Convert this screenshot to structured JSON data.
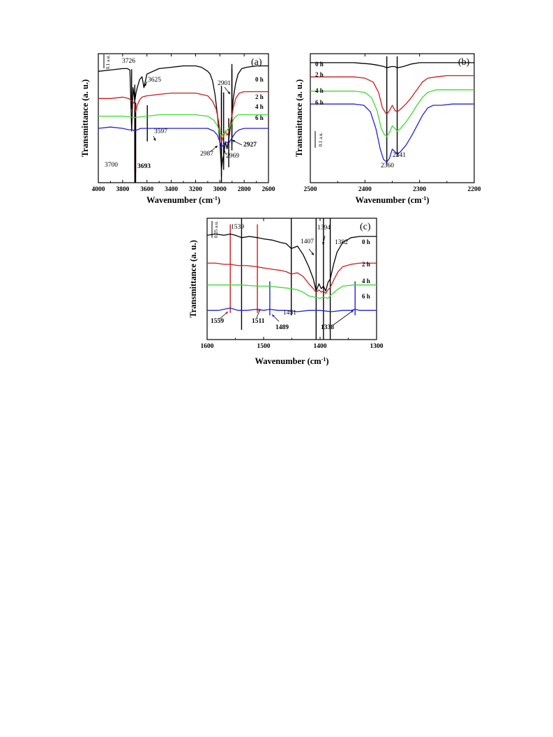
{
  "chart_data": [
    {
      "type": "line",
      "panel": "(a)",
      "xlabel": "Wavenumber (cm-1)",
      "ylabel": "Transmittance (a. u.)",
      "xlim": [
        4000,
        2600
      ],
      "x_reversed": true,
      "x_ticks": [
        "4000",
        "3800",
        "3600",
        "3400",
        "3200",
        "3000",
        "2800",
        "2600"
      ],
      "scale_bar": "0.1 a.u.",
      "series": [
        {
          "name": "0 h",
          "color": "#000000",
          "x": [
            4000,
            3900,
            3800,
            3760,
            3740,
            3726,
            3715,
            3700,
            3690,
            3680,
            3660,
            3640,
            3625,
            3600,
            3500,
            3400,
            3300,
            3200,
            3150,
            3100,
            3080,
            3060,
            3040,
            3020,
            3000,
            2987,
            2975,
            2969,
            2955,
            2940,
            2927,
            2915,
            2901,
            2890,
            2870,
            2850,
            2820,
            2780,
            2700,
            2600
          ],
          "y": [
            0.82,
            0.83,
            0.84,
            0.84,
            0.83,
            0.38,
            0.7,
            0.6,
            0.66,
            0.7,
            0.76,
            0.78,
            0.7,
            0.8,
            0.84,
            0.85,
            0.86,
            0.86,
            0.85,
            0.82,
            0.8,
            0.75,
            0.65,
            0.5,
            0.3,
            0.1,
            0.18,
            0.2,
            0.3,
            0.25,
            0.32,
            0.4,
            0.5,
            0.62,
            0.73,
            0.8,
            0.84,
            0.85,
            0.86,
            0.86
          ]
        },
        {
          "name": "2 h",
          "color": "#cc1b1b",
          "x": [
            4000,
            3900,
            3800,
            3750,
            3720,
            3700,
            3693,
            3680,
            3660,
            3640,
            3600,
            3500,
            3400,
            3300,
            3200,
            3100,
            3060,
            3030,
            3010,
            2995,
            2987,
            2970,
            2955,
            2940,
            2927,
            2910,
            2890,
            2870,
            2840,
            2800,
            2700,
            2600
          ],
          "y": [
            0.62,
            0.62,
            0.63,
            0.62,
            0.6,
            0.58,
            0.52,
            0.57,
            0.61,
            0.63,
            0.64,
            0.65,
            0.66,
            0.66,
            0.66,
            0.64,
            0.6,
            0.54,
            0.45,
            0.35,
            0.3,
            0.34,
            0.38,
            0.35,
            0.37,
            0.45,
            0.55,
            0.62,
            0.66,
            0.67,
            0.67,
            0.67
          ]
        },
        {
          "name": "4 h",
          "color": "#3cdc2c",
          "x": [
            4000,
            3900,
            3800,
            3700,
            3600,
            3500,
            3400,
            3300,
            3200,
            3100,
            3050,
            3020,
            3000,
            2987,
            2970,
            2950,
            2927,
            2900,
            2880,
            2850,
            2800,
            2700,
            2600
          ],
          "y": [
            0.49,
            0.49,
            0.49,
            0.48,
            0.49,
            0.5,
            0.5,
            0.5,
            0.5,
            0.49,
            0.46,
            0.42,
            0.37,
            0.34,
            0.36,
            0.38,
            0.4,
            0.44,
            0.48,
            0.5,
            0.5,
            0.5,
            0.5
          ]
        },
        {
          "name": "6 h",
          "color": "#2020d8",
          "x": [
            4000,
            3900,
            3800,
            3750,
            3720,
            3700,
            3680,
            3650,
            3600,
            3500,
            3400,
            3300,
            3200,
            3100,
            3050,
            3020,
            3000,
            2987,
            2970,
            2950,
            2927,
            2900,
            2870,
            2840,
            2800,
            2700,
            2600
          ],
          "y": [
            0.4,
            0.41,
            0.4,
            0.39,
            0.39,
            0.38,
            0.39,
            0.4,
            0.4,
            0.4,
            0.4,
            0.4,
            0.4,
            0.4,
            0.38,
            0.35,
            0.3,
            0.26,
            0.28,
            0.3,
            0.29,
            0.33,
            0.37,
            0.39,
            0.4,
            0.4,
            0.4
          ]
        }
      ],
      "annotations": [
        {
          "x": 3726,
          "text": "3726",
          "color": "#000000"
        },
        {
          "x": 3625,
          "text": "3625",
          "color": "#000000"
        },
        {
          "x": 3597,
          "text": "3597",
          "color": "#000000"
        },
        {
          "x": 3700,
          "text": "3700",
          "color": "#000000"
        },
        {
          "x": 3693,
          "text": "3693",
          "color": "#cc1b1b"
        },
        {
          "x": 2901,
          "text": "2901",
          "color": "#000000"
        },
        {
          "x": 2927,
          "text": "2927",
          "color": "#000000"
        },
        {
          "x": 2969,
          "text": "2969",
          "color": "#000000"
        },
        {
          "x": 2987,
          "text": "2987",
          "color": "#000000"
        }
      ]
    },
    {
      "type": "line",
      "panel": "(b)",
      "xlabel": "Wavenumber (cm-1)",
      "ylabel": "Transmittance (a. u.)",
      "xlim": [
        2500,
        2200
      ],
      "x_reversed": true,
      "x_ticks": [
        "2500",
        "2400",
        "2300",
        "2200"
      ],
      "scale_bar": "0.1 a.u.",
      "series": [
        {
          "name": "0 h",
          "color": "#000000",
          "x": [
            2500,
            2420,
            2390,
            2375,
            2365,
            2360,
            2352,
            2345,
            2341,
            2330,
            2315,
            2300,
            2270,
            2240,
            2200
          ],
          "y": [
            0.93,
            0.93,
            0.92,
            0.91,
            0.9,
            0.89,
            0.9,
            0.9,
            0.89,
            0.9,
            0.92,
            0.93,
            0.93,
            0.93,
            0.93
          ]
        },
        {
          "name": "2 h",
          "color": "#cc1b1b",
          "x": [
            2500,
            2420,
            2400,
            2385,
            2375,
            2368,
            2362,
            2360,
            2355,
            2350,
            2345,
            2341,
            2335,
            2325,
            2315,
            2305,
            2295,
            2285,
            2270,
            2250,
            2220,
            2200
          ],
          "y": [
            0.82,
            0.82,
            0.81,
            0.78,
            0.7,
            0.58,
            0.54,
            0.53,
            0.56,
            0.6,
            0.56,
            0.55,
            0.57,
            0.61,
            0.66,
            0.72,
            0.78,
            0.81,
            0.82,
            0.83,
            0.83,
            0.83
          ]
        },
        {
          "name": "4 h",
          "color": "#3cdc2c",
          "x": [
            2500,
            2420,
            2400,
            2388,
            2378,
            2370,
            2364,
            2360,
            2355,
            2350,
            2345,
            2341,
            2335,
            2325,
            2315,
            2305,
            2295,
            2285,
            2270,
            2250,
            2220,
            2200
          ],
          "y": [
            0.71,
            0.71,
            0.7,
            0.66,
            0.56,
            0.42,
            0.37,
            0.36,
            0.39,
            0.44,
            0.42,
            0.4,
            0.42,
            0.47,
            0.53,
            0.6,
            0.66,
            0.7,
            0.72,
            0.72,
            0.72,
            0.72
          ]
        },
        {
          "name": "6 h",
          "color": "#2020d8",
          "x": [
            2500,
            2420,
            2402,
            2390,
            2380,
            2372,
            2366,
            2360,
            2355,
            2350,
            2345,
            2341,
            2335,
            2325,
            2315,
            2305,
            2295,
            2285,
            2275,
            2260,
            2240,
            2220,
            2200
          ],
          "y": [
            0.61,
            0.61,
            0.6,
            0.55,
            0.42,
            0.26,
            0.18,
            0.16,
            0.19,
            0.26,
            0.24,
            0.22,
            0.24,
            0.29,
            0.36,
            0.44,
            0.52,
            0.58,
            0.6,
            0.6,
            0.61,
            0.61,
            0.61
          ]
        }
      ],
      "annotations": [
        {
          "x": 2360,
          "text": "2360",
          "color": "#000000"
        },
        {
          "x": 2341,
          "text": "2341",
          "color": "#000000"
        }
      ]
    },
    {
      "type": "line",
      "panel": "(c)",
      "xlabel": "Wavenumber (cm-1)",
      "ylabel": "Transmittance (a. u.)",
      "xlim": [
        1600,
        1300
      ],
      "x_reversed": true,
      "x_ticks": [
        "1600",
        "1500",
        "1400",
        "1300"
      ],
      "scale_bar": "0.05 a.u.",
      "series": [
        {
          "name": "0 h",
          "color": "#000000",
          "x": [
            1600,
            1585,
            1570,
            1559,
            1550,
            1539,
            1525,
            1511,
            1500,
            1485,
            1470,
            1460,
            1451,
            1440,
            1430,
            1420,
            1412,
            1407,
            1402,
            1398,
            1394,
            1390,
            1386,
            1382,
            1376,
            1370,
            1360,
            1345,
            1330,
            1315,
            1300
          ],
          "y": [
            0.86,
            0.87,
            0.86,
            0.87,
            0.86,
            0.84,
            0.85,
            0.84,
            0.83,
            0.82,
            0.8,
            0.79,
            0.75,
            0.77,
            0.7,
            0.6,
            0.5,
            0.4,
            0.46,
            0.42,
            0.44,
            0.4,
            0.47,
            0.5,
            0.62,
            0.72,
            0.8,
            0.84,
            0.85,
            0.85,
            0.85
          ]
        },
        {
          "name": "2 h",
          "color": "#cc1b1b",
          "x": [
            1600,
            1585,
            1570,
            1559,
            1545,
            1530,
            1511,
            1500,
            1485,
            1470,
            1460,
            1451,
            1440,
            1430,
            1420,
            1412,
            1407,
            1402,
            1398,
            1394,
            1390,
            1386,
            1382,
            1375,
            1368,
            1360,
            1345,
            1330,
            1300
          ],
          "y": [
            0.63,
            0.63,
            0.62,
            0.62,
            0.61,
            0.61,
            0.6,
            0.59,
            0.58,
            0.57,
            0.56,
            0.54,
            0.55,
            0.52,
            0.46,
            0.42,
            0.39,
            0.41,
            0.39,
            0.4,
            0.38,
            0.41,
            0.43,
            0.5,
            0.56,
            0.6,
            0.62,
            0.63,
            0.63
          ]
        },
        {
          "name": "4 h",
          "color": "#3cdc2c",
          "x": [
            1600,
            1570,
            1540,
            1511,
            1490,
            1470,
            1451,
            1440,
            1430,
            1420,
            1410,
            1400,
            1394,
            1386,
            1380,
            1370,
            1360,
            1340,
            1320,
            1300
          ],
          "y": [
            0.45,
            0.45,
            0.45,
            0.44,
            0.44,
            0.43,
            0.42,
            0.41,
            0.39,
            0.36,
            0.35,
            0.34,
            0.35,
            0.34,
            0.37,
            0.41,
            0.44,
            0.45,
            0.45,
            0.45
          ]
        },
        {
          "name": "6 h",
          "color": "#2020d8",
          "x": [
            1600,
            1580,
            1559,
            1545,
            1530,
            1511,
            1500,
            1489,
            1475,
            1460,
            1440,
            1420,
            1400,
            1380,
            1360,
            1345,
            1338,
            1330,
            1315,
            1300
          ],
          "y": [
            0.24,
            0.24,
            0.26,
            0.24,
            0.24,
            0.25,
            0.24,
            0.25,
            0.24,
            0.24,
            0.23,
            0.24,
            0.24,
            0.23,
            0.24,
            0.24,
            0.25,
            0.24,
            0.24,
            0.24
          ]
        }
      ],
      "annotations": [
        {
          "x": 1539,
          "text": "1539",
          "color": "#000000"
        },
        {
          "x": 1407,
          "text": "1407",
          "color": "#000000"
        },
        {
          "x": 1394,
          "text": "1394",
          "color": "#000000"
        },
        {
          "x": 1382,
          "text": "1382",
          "color": "#000000"
        },
        {
          "x": 1451,
          "text": "1451",
          "color": "#000000"
        },
        {
          "x": 1559,
          "text": "1559",
          "color": "#cc1b1b"
        },
        {
          "x": 1511,
          "text": "1511",
          "color": "#cc1b1b"
        },
        {
          "x": 1489,
          "text": "1489",
          "color": "#2020d8"
        },
        {
          "x": 1338,
          "text": "1338",
          "color": "#2020d8"
        }
      ]
    }
  ]
}
